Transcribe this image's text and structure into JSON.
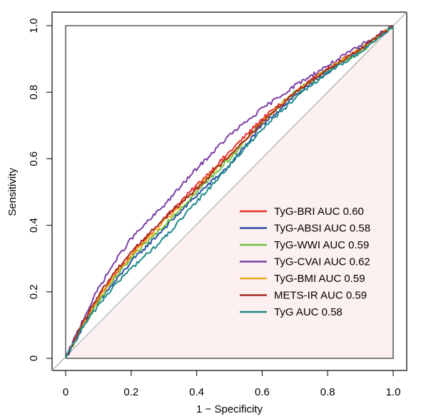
{
  "chart_data": {
    "type": "line",
    "xlabel": "1 − Specificity",
    "ylabel": "Sensitivity",
    "xlim": [
      0,
      1
    ],
    "ylim": [
      0,
      1
    ],
    "x_ticks": [
      {
        "value": 0,
        "label": "0"
      },
      {
        "value": 0.2,
        "label": "0.2"
      },
      {
        "value": 0.4,
        "label": "0.4"
      },
      {
        "value": 0.6,
        "label": "0.6"
      },
      {
        "value": 0.8,
        "label": "0.8"
      },
      {
        "value": 1.0,
        "label": "1.0"
      }
    ],
    "y_ticks": [
      {
        "value": 0,
        "label": "0"
      },
      {
        "value": 0.2,
        "label": "0.2"
      },
      {
        "value": 0.4,
        "label": "0.4"
      },
      {
        "value": 0.6,
        "label": "0.6"
      },
      {
        "value": 0.8,
        "label": "0.8"
      },
      {
        "value": 1.0,
        "label": "1.0"
      }
    ],
    "grid": false,
    "legend_position": "bottom-right",
    "reference_line": {
      "x": [
        0,
        1
      ],
      "y": [
        0,
        1
      ],
      "color": "#a8a8a8"
    },
    "shaded_region_color": "#fdf0f0",
    "series": [
      {
        "name": "TyG-BRI AUC 0.60",
        "color": "#e8302b",
        "x": [
          0,
          0.05,
          0.1,
          0.15,
          0.2,
          0.3,
          0.4,
          0.5,
          0.6,
          0.7,
          0.8,
          0.9,
          1.0
        ],
        "y": [
          0,
          0.1,
          0.18,
          0.25,
          0.31,
          0.42,
          0.52,
          0.62,
          0.72,
          0.8,
          0.87,
          0.93,
          1.0
        ]
      },
      {
        "name": "TyG-ABSI AUC 0.58",
        "color": "#2a4ea6",
        "x": [
          0,
          0.05,
          0.1,
          0.15,
          0.2,
          0.3,
          0.4,
          0.5,
          0.6,
          0.7,
          0.8,
          0.9,
          1.0
        ],
        "y": [
          0,
          0.09,
          0.17,
          0.23,
          0.29,
          0.39,
          0.49,
          0.58,
          0.7,
          0.79,
          0.86,
          0.93,
          1.0
        ]
      },
      {
        "name": "TyG-WWI AUC 0.59",
        "color": "#6cc23a",
        "x": [
          0,
          0.05,
          0.1,
          0.15,
          0.2,
          0.3,
          0.4,
          0.5,
          0.6,
          0.7,
          0.8,
          0.9,
          1.0
        ],
        "y": [
          0,
          0.09,
          0.17,
          0.24,
          0.3,
          0.4,
          0.5,
          0.6,
          0.71,
          0.8,
          0.87,
          0.92,
          1.0
        ]
      },
      {
        "name": "TyG-CVAI AUC 0.62",
        "color": "#7b3fa6",
        "x": [
          0,
          0.05,
          0.1,
          0.15,
          0.2,
          0.3,
          0.4,
          0.5,
          0.6,
          0.7,
          0.8,
          0.9,
          1.0
        ],
        "y": [
          0,
          0.11,
          0.21,
          0.29,
          0.36,
          0.46,
          0.57,
          0.67,
          0.75,
          0.82,
          0.88,
          0.94,
          1.0
        ]
      },
      {
        "name": "TyG-BMI AUC 0.59",
        "color": "#f5a623",
        "x": [
          0,
          0.05,
          0.1,
          0.15,
          0.2,
          0.3,
          0.4,
          0.5,
          0.6,
          0.7,
          0.8,
          0.9,
          1.0
        ],
        "y": [
          0,
          0.1,
          0.18,
          0.25,
          0.31,
          0.41,
          0.51,
          0.61,
          0.71,
          0.8,
          0.87,
          0.93,
          1.0
        ]
      },
      {
        "name": "METS-IR AUC 0.59",
        "color": "#a32a22",
        "x": [
          0,
          0.05,
          0.1,
          0.15,
          0.2,
          0.3,
          0.4,
          0.5,
          0.6,
          0.7,
          0.8,
          0.9,
          1.0
        ],
        "y": [
          0,
          0.1,
          0.19,
          0.26,
          0.32,
          0.42,
          0.51,
          0.61,
          0.71,
          0.8,
          0.87,
          0.93,
          1.0
        ]
      },
      {
        "name": "TyG AUC 0.58",
        "color": "#1f8a8a",
        "x": [
          0,
          0.05,
          0.1,
          0.15,
          0.2,
          0.3,
          0.4,
          0.5,
          0.6,
          0.7,
          0.8,
          0.9,
          1.0
        ],
        "y": [
          0,
          0.09,
          0.16,
          0.22,
          0.27,
          0.36,
          0.47,
          0.58,
          0.69,
          0.78,
          0.86,
          0.92,
          1.0
        ]
      }
    ]
  }
}
